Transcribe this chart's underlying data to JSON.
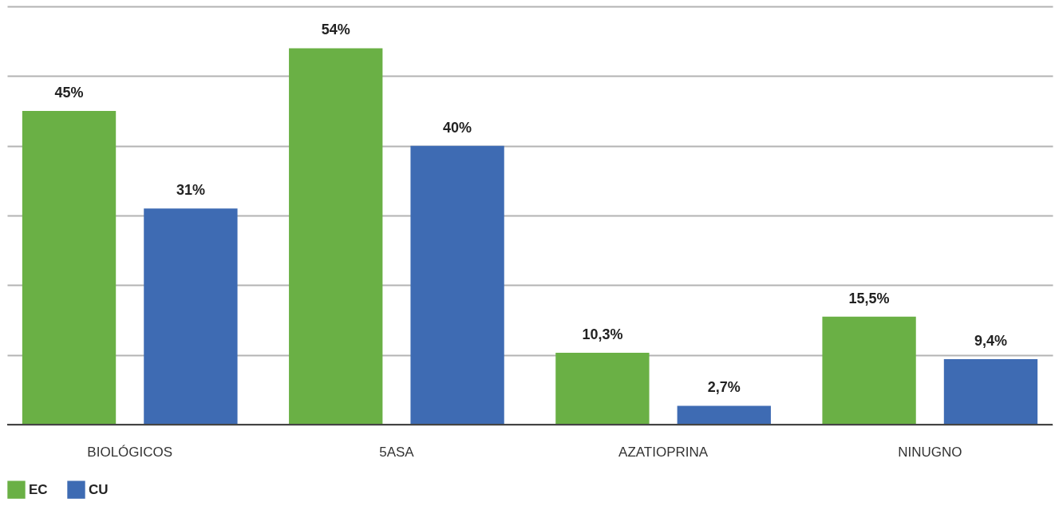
{
  "chart_data": {
    "type": "bar",
    "categories": [
      "BIOLÓGICOS",
      "5ASA",
      "AZATIOPRINA",
      "NINUGNO"
    ],
    "series": [
      {
        "name": "EC",
        "color": "#6ab045",
        "values": [
          45,
          54,
          10.3,
          15.5
        ],
        "value_labels": [
          "45%",
          "54%",
          "10,3%",
          "15,5%"
        ]
      },
      {
        "name": "CU",
        "color": "#3e6bb3",
        "values": [
          31,
          40,
          2.7,
          9.4
        ],
        "value_labels": [
          "31%",
          "40%",
          "2,7%",
          "9,4%"
        ]
      }
    ],
    "ylim": [
      0,
      60
    ],
    "yticks": [
      {
        "value": 0,
        "label": null
      },
      {
        "value": 10,
        "label": null
      },
      {
        "value": 20,
        "label": null
      },
      {
        "value": 30,
        "label": null
      },
      {
        "value": 40,
        "label": null
      },
      {
        "value": 50,
        "label": null
      },
      {
        "value": 60,
        "label": null
      }
    ],
    "grid": "y",
    "tick_labels": "x",
    "legend": "bottom"
  }
}
